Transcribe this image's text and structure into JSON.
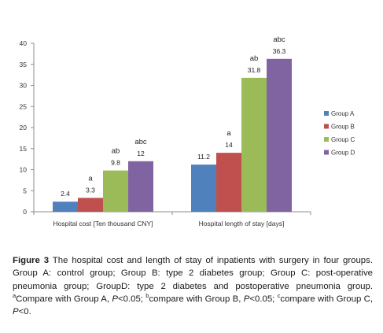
{
  "chart_data": {
    "type": "bar",
    "categories": [
      "Hospital cost [Ten thousand CNY]",
      "Hospital length of stay [days]"
    ],
    "series": [
      {
        "name": "Group A",
        "color": "#4f81bd",
        "values": [
          2.4,
          11.2
        ],
        "labels": [
          "2.4",
          "11.2"
        ],
        "sig": [
          "",
          ""
        ]
      },
      {
        "name": "Group B",
        "color": "#c0504d",
        "values": [
          3.3,
          14
        ],
        "labels": [
          "3.3",
          "14"
        ],
        "sig": [
          "a",
          "a"
        ]
      },
      {
        "name": "Group C",
        "color": "#9bbb59",
        "values": [
          9.8,
          31.8
        ],
        "labels": [
          "9.8",
          "31.8"
        ],
        "sig": [
          "ab",
          "ab"
        ]
      },
      {
        "name": "Group D",
        "color": "#8064a2",
        "values": [
          12,
          36.3
        ],
        "labels": [
          "12",
          "36.3"
        ],
        "sig": [
          "abc",
          "abc"
        ]
      }
    ],
    "ylim": [
      0,
      40
    ],
    "yticks": [
      "0",
      "5",
      "10",
      "15",
      "20",
      "25",
      "30",
      "35",
      "40"
    ],
    "grid": false,
    "legend": "right"
  },
  "caption": {
    "label": "Figure 3",
    "text1": " The hospital cost and length of stay of inpatients with surgery in four groups. Group A: control group; Group B: type 2 diabetes group; Group C: post-operative pneumonia group; GroupD: type 2 diabetes and postoperative pneumonia group. ",
    "sup_a": "a",
    "text2": "Compare with Group A, ",
    "p1": "P",
    "text3": "<0.05; ",
    "sup_b": "b",
    "text4": "compare with Group B, ",
    "p2": "P",
    "text5": "<0.05; ",
    "sup_c": "c",
    "text6": "compare with Group C, ",
    "p3": "P",
    "text7": "<0."
  }
}
